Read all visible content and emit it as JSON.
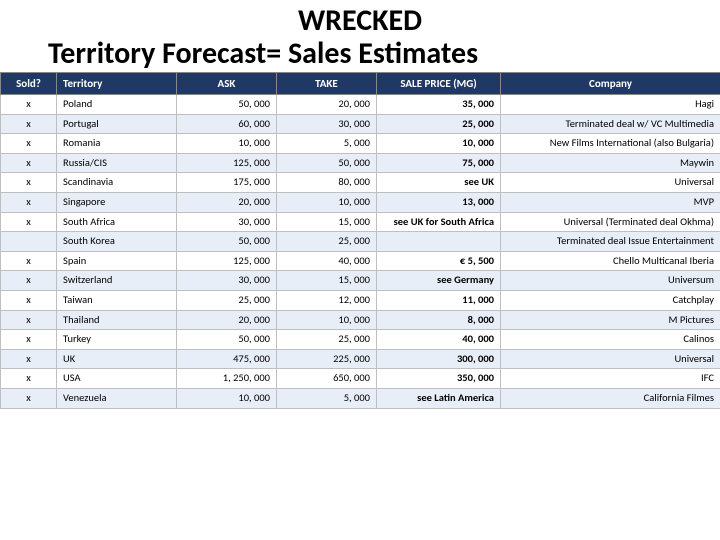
{
  "title_line1": "WRECKED",
  "title_line2": "Territory Forecast=  Sales Estimates",
  "headers": {
    "sold": "Sold?",
    "territory": "Territory",
    "ask": "ASK",
    "take": "TAKE",
    "sale": "SALE PRICE (MG)",
    "company": "Company"
  },
  "rows": [
    {
      "sold": "x",
      "territory": "Poland",
      "ask": "50, 000",
      "take": "20, 000",
      "sale": "35, 000",
      "company": "Hagi"
    },
    {
      "sold": "x",
      "territory": "Portugal",
      "ask": "60, 000",
      "take": "30, 000",
      "sale": "25, 000",
      "company": "Terminated deal w/ VC Multimedia"
    },
    {
      "sold": "x",
      "territory": "Romania",
      "ask": "10, 000",
      "take": "5, 000",
      "sale": "10, 000",
      "company": "New Films International (also Bulgaria)"
    },
    {
      "sold": "x",
      "territory": "Russia/CIS",
      "ask": "125, 000",
      "take": "50, 000",
      "sale": "75, 000",
      "company": "Maywin"
    },
    {
      "sold": "x",
      "territory": "Scandinavia",
      "ask": "175, 000",
      "take": "80, 000",
      "sale": "see UK",
      "company": "Universal"
    },
    {
      "sold": "x",
      "territory": "Singapore",
      "ask": "20, 000",
      "take": "10, 000",
      "sale": "13, 000",
      "company": "MVP"
    },
    {
      "sold": "x",
      "territory": "South Africa",
      "ask": "30, 000",
      "take": "15, 000",
      "sale": "see UK for South Africa",
      "company": "Universal (Terminated deal Okhma)"
    },
    {
      "sold": "",
      "territory": "South Korea",
      "ask": "50, 000",
      "take": "25, 000",
      "sale": "",
      "company": "Terminated deal Issue Entertainment"
    },
    {
      "sold": "x",
      "territory": "Spain",
      "ask": "125, 000",
      "take": "40, 000",
      "sale": "€ 5, 500",
      "company": "Chello Multicanal Iberia"
    },
    {
      "sold": "x",
      "territory": "Switzerland",
      "ask": "30, 000",
      "take": "15, 000",
      "sale": "see Germany",
      "company": "Universum"
    },
    {
      "sold": "x",
      "territory": "Taiwan",
      "ask": "25, 000",
      "take": "12, 000",
      "sale": "11, 000",
      "company": "Catchplay"
    },
    {
      "sold": "x",
      "territory": "Thailand",
      "ask": "20, 000",
      "take": "10, 000",
      "sale": "8, 000",
      "company": "M Pictures"
    },
    {
      "sold": "x",
      "territory": "Turkey",
      "ask": "50, 000",
      "take": "25, 000",
      "sale": "40, 000",
      "company": "Calinos"
    },
    {
      "sold": "x",
      "territory": "UK",
      "ask": "475, 000",
      "take": "225, 000",
      "sale": "300, 000",
      "company": "Universal"
    },
    {
      "sold": "x",
      "territory": "USA",
      "ask": "1, 250, 000",
      "take": "650, 000",
      "sale": "350, 000",
      "company": "IFC"
    },
    {
      "sold": "x",
      "territory": "Venezuela",
      "ask": "10, 000",
      "take": "5, 000",
      "sale": "see Latin America",
      "company": "California Filmes"
    }
  ],
  "colors": {
    "header_bg": "#1f3864",
    "header_fg": "#ffffff",
    "row_alt_bg": "#e8eef7",
    "border": "#bfbfbf"
  }
}
